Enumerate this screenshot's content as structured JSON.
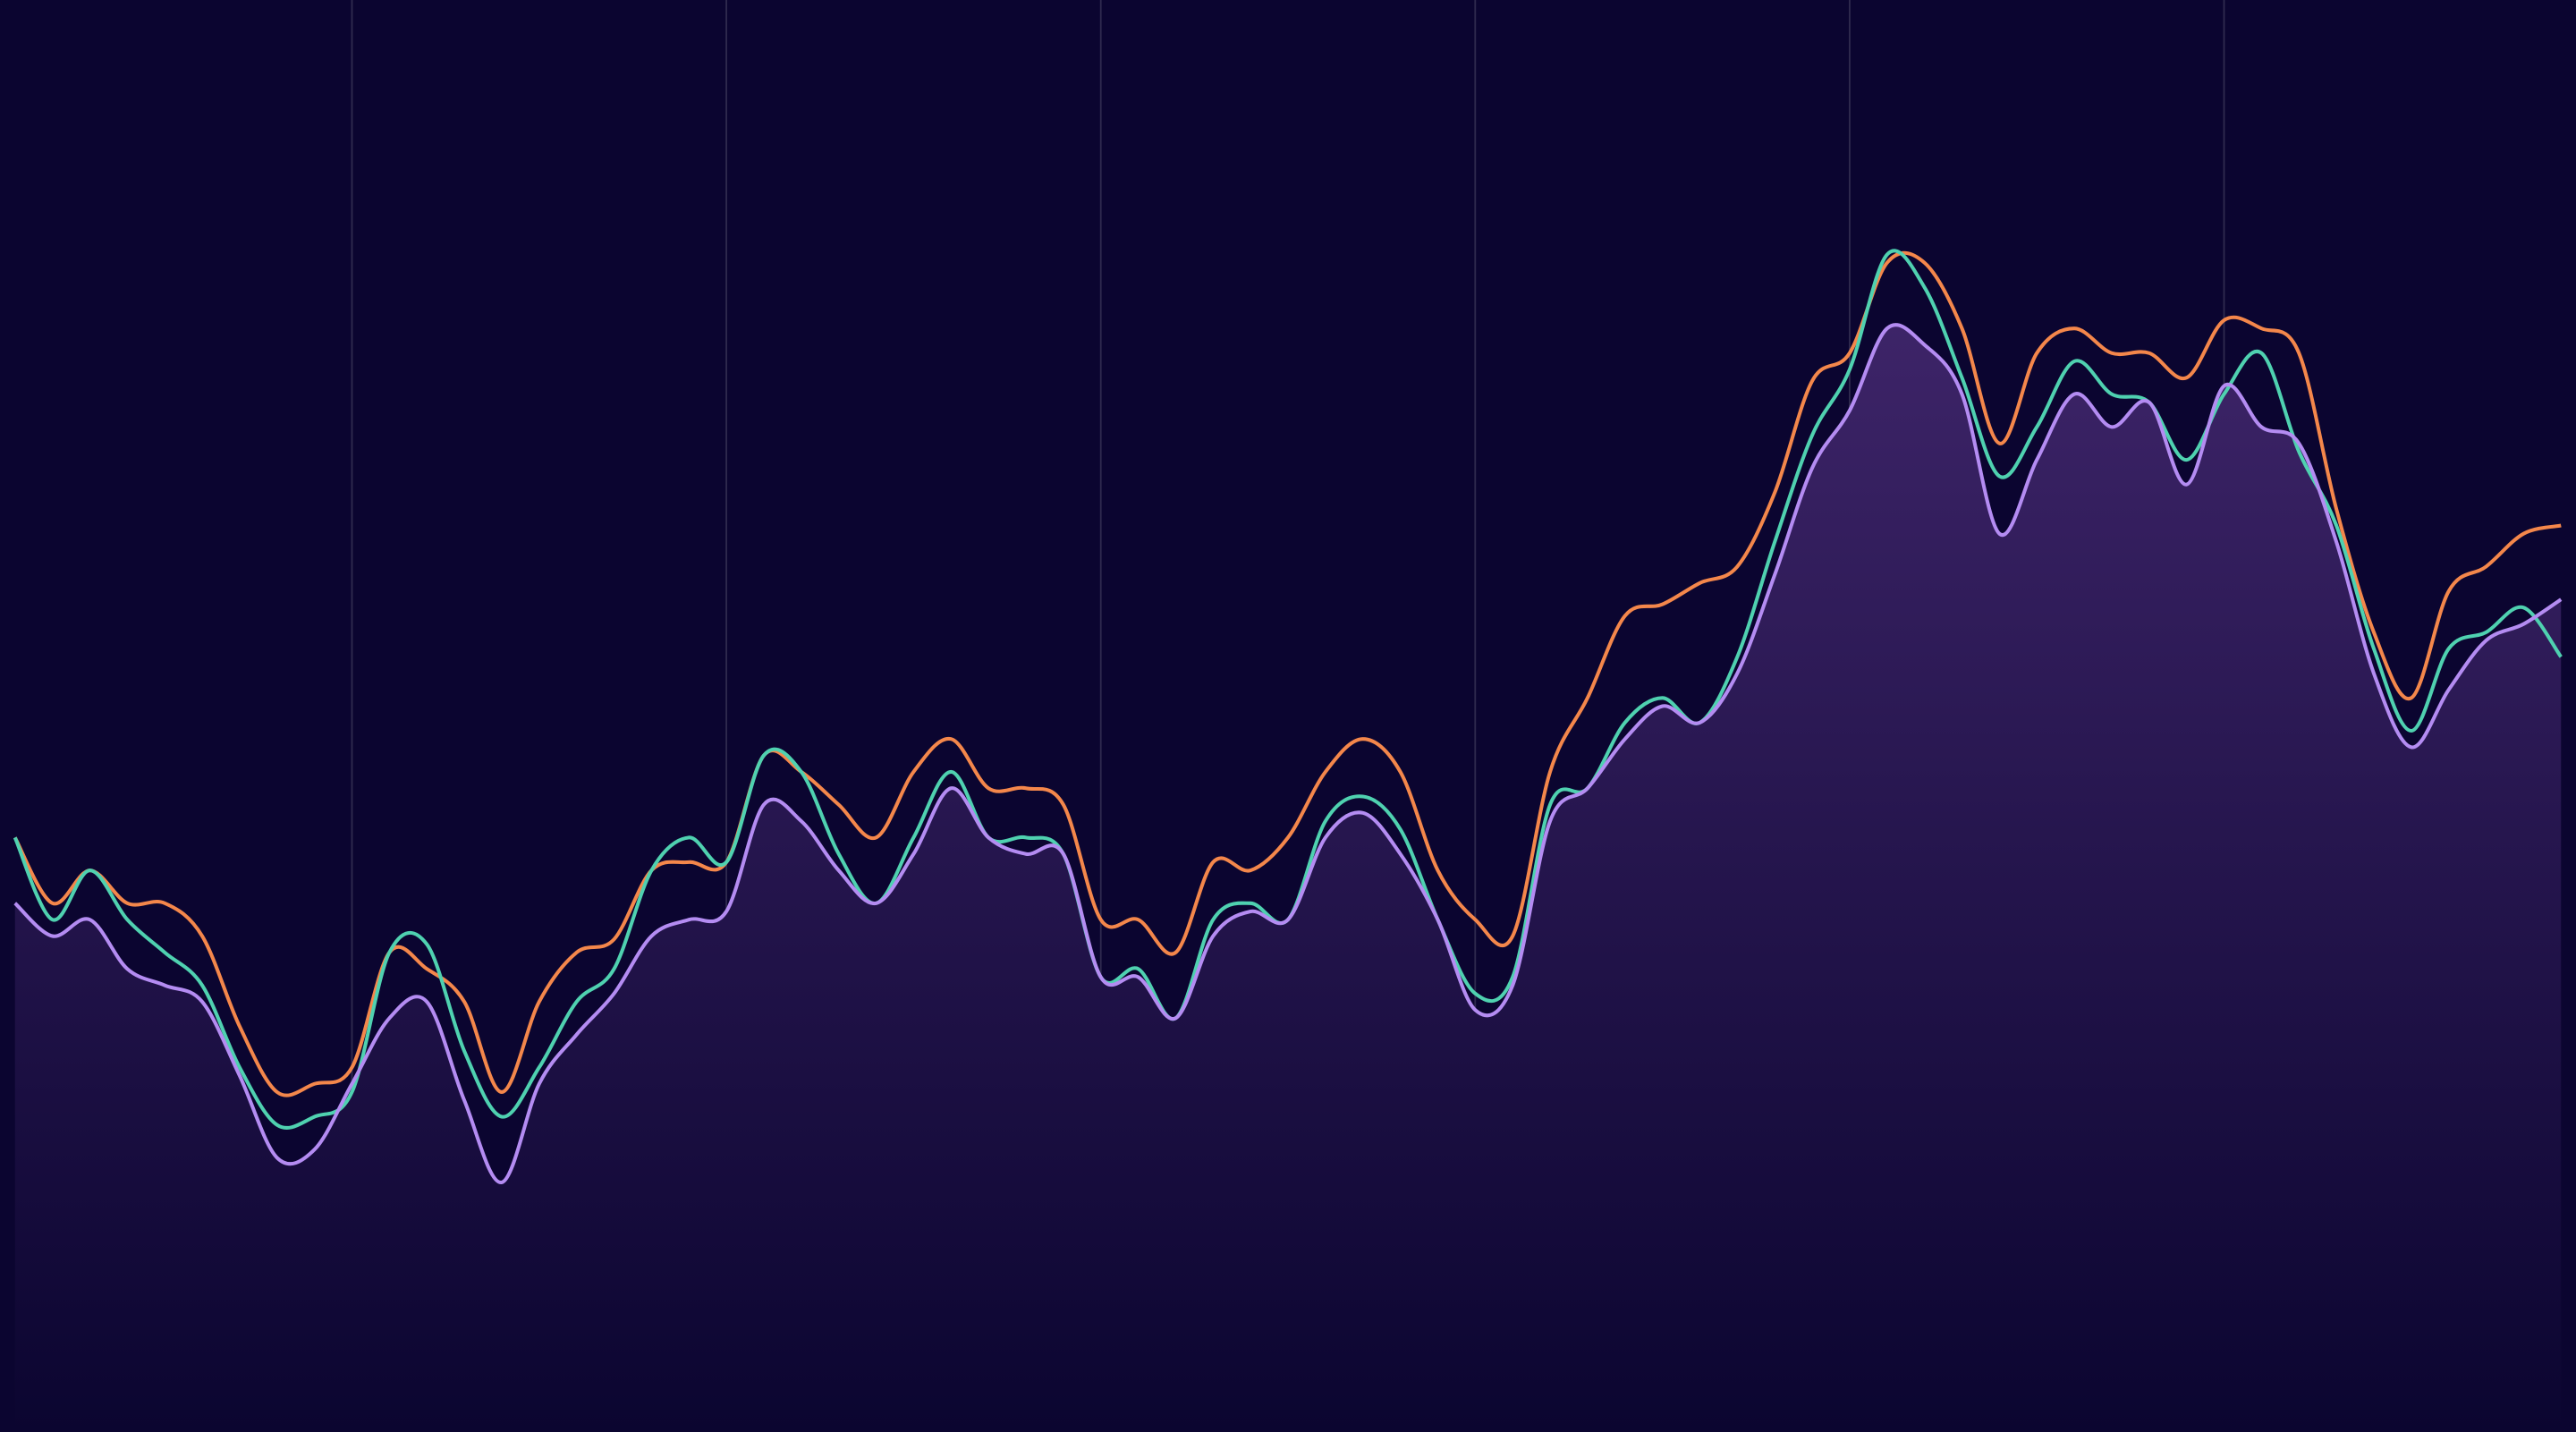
{
  "chart_data": {
    "type": "line",
    "x": [
      1,
      2,
      3,
      4,
      5,
      6,
      7,
      8,
      9,
      10,
      11,
      12,
      13,
      14,
      15,
      16,
      17,
      18,
      19,
      20,
      21,
      22,
      23,
      24,
      25,
      26,
      27,
      28,
      29,
      30,
      31,
      32,
      33,
      34,
      35,
      36,
      37,
      38,
      39,
      40,
      41,
      42,
      43,
      44,
      45,
      46,
      47,
      48,
      49,
      50,
      51,
      52,
      53,
      54,
      55,
      56,
      57,
      58,
      59,
      60,
      61,
      62,
      63,
      64,
      65,
      66,
      67,
      68,
      69
    ],
    "xlim": [
      0.6,
      69.4
    ],
    "xticks": [
      10,
      20,
      30,
      40,
      50,
      60
    ],
    "ylim": [
      0,
      872
    ],
    "grid": true,
    "background": "#0b0530",
    "series": [
      {
        "color": "#f4874b",
        "values": [
          362,
          322,
          342,
          322,
          322,
          302,
          247,
          207,
          212,
          222,
          292,
          282,
          262,
          207,
          262,
          292,
          300,
          342,
          347,
          347,
          412,
          402,
          382,
          362,
          402,
          422,
          392,
          392,
          382,
          312,
          312,
          292,
          347,
          342,
          362,
          402,
          422,
          402,
          342,
          312,
          302,
          402,
          447,
          497,
          504,
          517,
          527,
          572,
          640,
          657,
          712,
          712,
          672,
          602,
          657,
          672,
          657,
          657,
          642,
          677,
          672,
          657,
          562,
          487,
          447,
          512,
          527,
          547,
          552
        ]
      },
      {
        "color": "#4fd1b0",
        "values": [
          362,
          312,
          342,
          312,
          292,
          272,
          222,
          187,
          192,
          207,
          292,
          297,
          232,
          192,
          222,
          262,
          282,
          342,
          362,
          347,
          412,
          402,
          352,
          322,
          362,
          402,
          362,
          362,
          352,
          277,
          282,
          252,
          312,
          322,
          312,
          372,
          387,
          367,
          312,
          267,
          277,
          382,
          392,
          432,
          447,
          432,
          472,
          542,
          607,
          647,
          717,
          697,
          642,
          582,
          612,
          652,
          632,
          627,
          592,
          632,
          657,
          597,
          552,
          477,
          427,
          477,
          487,
          502,
          472
        ]
      },
      {
        "color": "#b48cf2",
        "area": true,
        "values": [
          322,
          302,
          312,
          282,
          272,
          262,
          217,
          167,
          172,
          212,
          252,
          262,
          202,
          152,
          212,
          242,
          267,
          302,
          312,
          317,
          382,
          372,
          342,
          322,
          352,
          392,
          362,
          352,
          352,
          277,
          277,
          252,
          302,
          317,
          312,
          362,
          377,
          352,
          312,
          257,
          272,
          372,
          392,
          422,
          442,
          432,
          462,
          522,
          587,
          622,
          672,
          662,
          632,
          547,
          592,
          632,
          612,
          627,
          577,
          637,
          612,
          602,
          542,
          462,
          417,
          452,
          482,
          492,
          507
        ]
      }
    ]
  }
}
